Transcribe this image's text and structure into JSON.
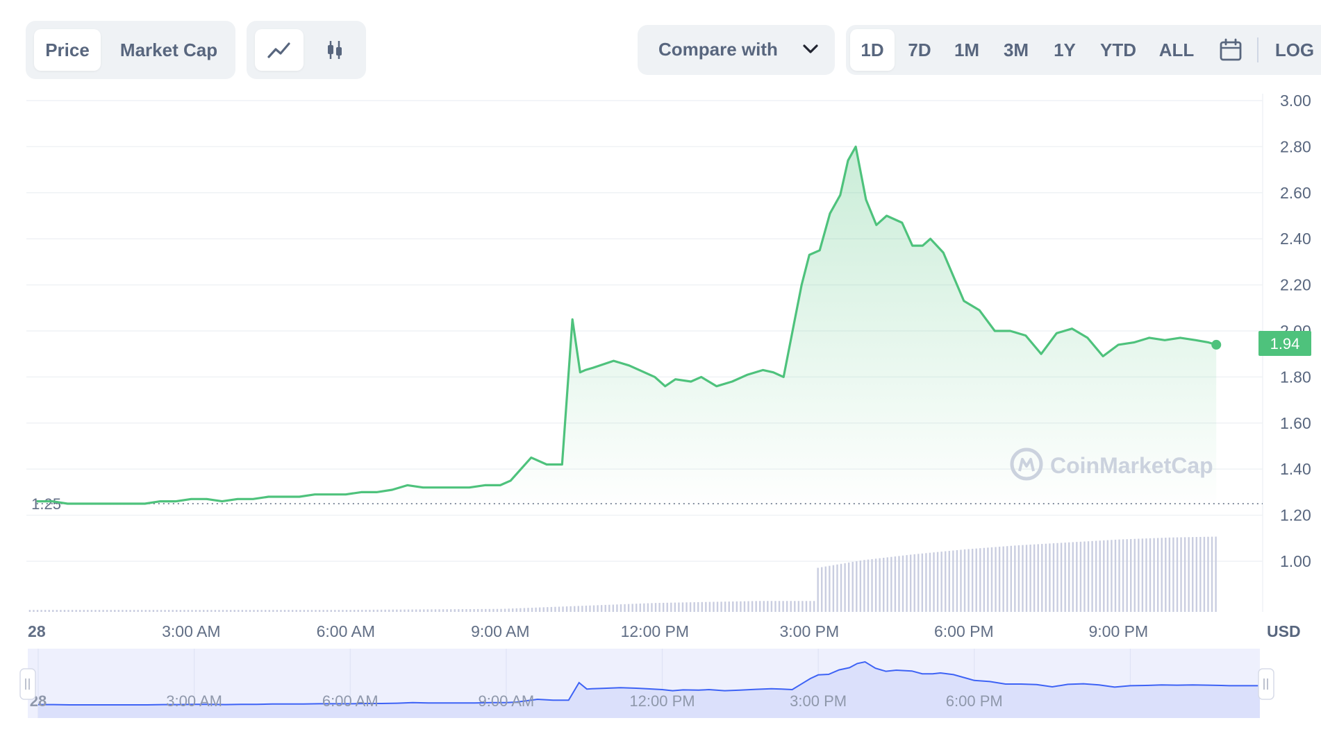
{
  "toolbar": {
    "metric_tabs": [
      "Price",
      "Market Cap"
    ],
    "chart_type_icons": [
      "line-chart-icon",
      "candlestick-icon"
    ],
    "compare_label": "Compare with",
    "ranges": [
      "1D",
      "7D",
      "1M",
      "3M",
      "1Y",
      "YTD",
      "ALL"
    ],
    "calendar_icon": "calendar-icon",
    "log_label": "LOG"
  },
  "colors": {
    "line": "#4ec27c",
    "area": "#4ec27c",
    "volume": "#c9cde0",
    "navigator_bg": "#eef0fd",
    "navigator_line": "#3d62f5",
    "price_badge": "#4ec27c"
  },
  "watermark": "CoinMarketCap",
  "chart_data": {
    "type": "line",
    "title": "",
    "currency_label": "USD",
    "y_ticks": [
      "3.00",
      "2.80",
      "2.60",
      "2.40",
      "2.20",
      "2.00",
      "1.80",
      "1.60",
      "1.40",
      "1.20",
      "1.00"
    ],
    "ylim": [
      0.78,
      3.0
    ],
    "x_ticks": [
      "28",
      "3:00 AM",
      "6:00 AM",
      "9:00 AM",
      "12:00 PM",
      "3:00 PM",
      "6:00 PM",
      "9:00 PM"
    ],
    "x_tick_hours": [
      0,
      3,
      6,
      9,
      12,
      15,
      18,
      21
    ],
    "xlim_hours": [
      -0.2,
      23.8
    ],
    "open_reference": "1.25",
    "current_price": "1.94",
    "grid": true,
    "series": [
      {
        "x_hours": [
          0.0,
          0.3,
          0.6,
          0.9,
          1.2,
          1.5,
          1.8,
          2.1,
          2.4,
          2.7,
          3.0,
          3.3,
          3.6,
          3.9,
          4.2,
          4.5,
          4.8,
          5.1,
          5.4,
          5.7,
          6.0,
          6.3,
          6.6,
          6.9,
          7.2,
          7.5,
          7.8,
          8.1,
          8.4,
          8.7,
          9.0,
          9.2,
          9.4,
          9.6,
          9.9,
          10.2,
          10.4,
          10.55,
          10.65,
          10.8,
          11.2,
          11.5,
          11.7,
          12.0,
          12.2,
          12.4,
          12.7,
          12.9,
          13.2,
          13.5,
          13.8,
          14.1,
          14.3,
          14.4,
          14.5,
          14.7,
          14.85,
          15.0,
          15.2,
          15.4,
          15.6,
          15.75,
          15.9,
          16.1,
          16.3,
          16.5,
          16.8,
          17.0,
          17.2,
          17.35,
          17.6,
          18.0,
          18.3,
          18.6,
          18.9,
          19.2,
          19.5,
          19.8,
          20.1,
          20.4,
          20.7,
          21.0,
          21.3,
          21.6,
          21.9,
          22.2,
          22.5,
          22.75,
          22.9
        ],
        "values": [
          1.26,
          1.26,
          1.25,
          1.25,
          1.25,
          1.25,
          1.25,
          1.25,
          1.26,
          1.26,
          1.27,
          1.27,
          1.26,
          1.27,
          1.27,
          1.28,
          1.28,
          1.28,
          1.29,
          1.29,
          1.29,
          1.3,
          1.3,
          1.31,
          1.33,
          1.32,
          1.32,
          1.32,
          1.32,
          1.33,
          1.33,
          1.35,
          1.4,
          1.45,
          1.42,
          1.42,
          2.05,
          1.82,
          1.83,
          1.84,
          1.87,
          1.85,
          1.83,
          1.8,
          1.76,
          1.79,
          1.78,
          1.8,
          1.76,
          1.78,
          1.81,
          1.83,
          1.82,
          1.81,
          1.8,
          2.03,
          2.2,
          2.33,
          2.35,
          2.51,
          2.59,
          2.74,
          2.8,
          2.57,
          2.46,
          2.5,
          2.47,
          2.37,
          2.37,
          2.4,
          2.34,
          2.13,
          2.09,
          2.0,
          2.0,
          1.98,
          1.9,
          1.99,
          2.01,
          1.97,
          1.89,
          1.94,
          1.95,
          1.97,
          1.96,
          1.97,
          1.96,
          1.95,
          1.94
        ]
      }
    ],
    "volume": {
      "x_hours": [
        0,
        3,
        6,
        9,
        10.5,
        12,
        14,
        15.1,
        16,
        17,
        18,
        19,
        20,
        21,
        22,
        23
      ],
      "relative_values": [
        0.02,
        0.02,
        0.02,
        0.03,
        0.06,
        0.09,
        0.11,
        0.44,
        0.52,
        0.58,
        0.63,
        0.67,
        0.7,
        0.73,
        0.75,
        0.76
      ]
    },
    "navigator": {
      "x_ticks": [
        "28",
        "3:00 AM",
        "6:00 AM",
        "9:00 AM",
        "12:00 PM",
        "3:00 PM",
        "6:00 PM"
      ]
    }
  }
}
